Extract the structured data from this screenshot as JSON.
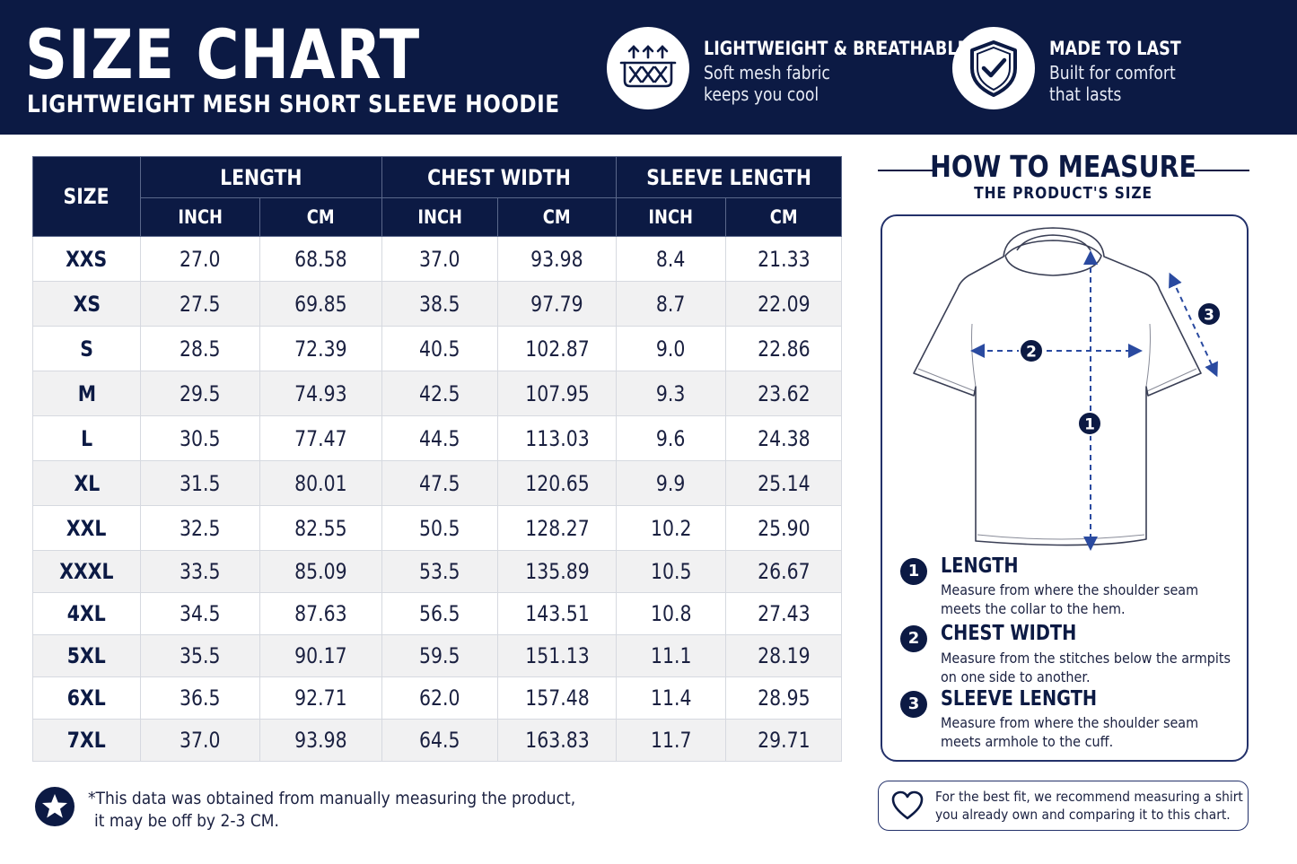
{
  "header": {
    "title": "SIZE CHART",
    "subtitle": "LIGHTWEIGHT MESH SHORT SLEEVE HOODIE",
    "features": [
      {
        "icon": "mesh-fabric-icon",
        "title": "LIGHTWEIGHT & BREATHABLE",
        "line1": "Soft mesh fabric",
        "line2": "keeps you cool"
      },
      {
        "icon": "shield-check-icon",
        "title": "MADE TO LAST",
        "line1": "Built for comfort",
        "line2": "that lasts"
      }
    ]
  },
  "table": {
    "size_header": "SIZE",
    "groups": [
      "LENGTH",
      "CHEST WIDTH",
      "SLEEVE LENGTH"
    ],
    "units": [
      "INCH",
      "CM",
      "INCH",
      "CM",
      "INCH",
      "CM"
    ],
    "rows": [
      [
        "XXS",
        "27.0",
        "68.58",
        "37.0",
        "93.98",
        "8.4",
        "21.33"
      ],
      [
        "XS",
        "27.5",
        "69.85",
        "38.5",
        "97.79",
        "8.7",
        "22.09"
      ],
      [
        "S",
        "28.5",
        "72.39",
        "40.5",
        "102.87",
        "9.0",
        "22.86"
      ],
      [
        "M",
        "29.5",
        "74.93",
        "42.5",
        "107.95",
        "9.3",
        "23.62"
      ],
      [
        "L",
        "30.5",
        "77.47",
        "44.5",
        "113.03",
        "9.6",
        "24.38"
      ],
      [
        "XL",
        "31.5",
        "80.01",
        "47.5",
        "120.65",
        "9.9",
        "25.14"
      ],
      [
        "XXL",
        "32.5",
        "82.55",
        "50.5",
        "128.27",
        "10.2",
        "25.90"
      ],
      [
        "XXXL",
        "33.5",
        "85.09",
        "53.5",
        "135.89",
        "10.5",
        "26.67"
      ],
      [
        "4XL",
        "34.5",
        "87.63",
        "56.5",
        "143.51",
        "10.8",
        "27.43"
      ],
      [
        "5XL",
        "35.5",
        "90.17",
        "59.5",
        "151.13",
        "11.1",
        "28.19"
      ],
      [
        "6XL",
        "36.5",
        "92.71",
        "62.0",
        "157.48",
        "11.4",
        "28.95"
      ],
      [
        "7XL",
        "37.0",
        "93.98",
        "64.5",
        "163.83",
        "11.7",
        "29.71"
      ]
    ]
  },
  "note": {
    "icon": "star-icon",
    "line1": "*This data was obtained from manually measuring the product,",
    "line2": "it may be off by 2-3 CM."
  },
  "measure": {
    "title": "HOW TO MEASURE",
    "subtitle": "THE PRODUCT'S SIZE",
    "diagram_markers": [
      "1",
      "2",
      "3"
    ],
    "steps": [
      {
        "num": "1",
        "title": "LENGTH",
        "line1": "Measure from where the shoulder seam",
        "line2": "meets the collar to the hem."
      },
      {
        "num": "2",
        "title": "CHEST WIDTH",
        "line1": "Measure from the stitches below the armpits",
        "line2": "on one side to another."
      },
      {
        "num": "3",
        "title": "SLEEVE LENGTH",
        "line1": "Measure from where the shoulder seam",
        "line2": "meets armhole to the cuff."
      }
    ],
    "tip": {
      "icon": "heart-icon",
      "line1": "For the best fit, we recommend measuring a shirt",
      "line2": "you already own and comparing it to this chart."
    }
  },
  "colors": {
    "navy": "#0c1a44",
    "row_alt": "#f1f1f2",
    "dashed_blue": "#2a4aa0"
  }
}
